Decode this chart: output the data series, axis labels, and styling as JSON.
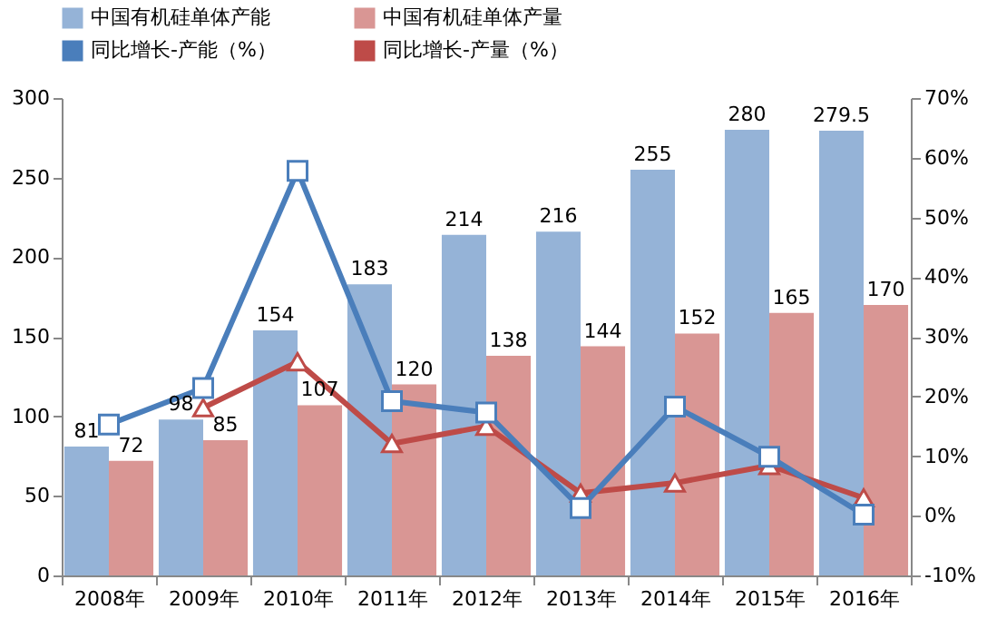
{
  "chart_data": {
    "type": "bar",
    "categories": [
      "2008年",
      "2009年",
      "2010年",
      "2011年",
      "2012年",
      "2013年",
      "2014年",
      "2015年",
      "2016年"
    ],
    "series": [
      {
        "name": "中国有机硅单体产能",
        "color": "#95b3d7",
        "values": [
          81,
          98,
          154,
          183,
          214,
          216,
          255,
          280,
          279.5
        ],
        "value_labels": [
          "81",
          "98",
          "154",
          "183",
          "214",
          "216",
          "255",
          "280",
          "279.5"
        ]
      },
      {
        "name": "中国有机硅单体产量",
        "color": "#d99694",
        "values": [
          72,
          85,
          107,
          120,
          138,
          144,
          152,
          165,
          170
        ],
        "value_labels": [
          "72",
          "85",
          "107",
          "120",
          "138",
          "144",
          "152",
          "165",
          "170"
        ]
      },
      {
        "name": "同比增长-产能（%）",
        "type": "line",
        "axis": "y2",
        "marker": "square",
        "color": "#4a7ebb",
        "values": [
          15.3,
          21.4,
          57.8,
          19.2,
          17.3,
          1.3,
          18.3,
          9.9,
          0.2
        ]
      },
      {
        "name": "同比增长-产量（%）",
        "type": "line",
        "axis": "y2",
        "marker": "triangle",
        "color": "#be4b48",
        "values": [
          null,
          18.1,
          25.8,
          12.1,
          15.0,
          3.8,
          5.5,
          8.4,
          3.0
        ]
      }
    ],
    "ylim": [
      0,
      300
    ],
    "yticks": [
      0,
      50,
      100,
      150,
      200,
      250,
      300
    ],
    "y2lim": [
      -10,
      70
    ],
    "y2ticks": [
      {
        "value": -10,
        "label": "-10%"
      },
      {
        "value": 0,
        "label": "0%"
      },
      {
        "value": 10,
        "label": "10%"
      },
      {
        "value": 20,
        "label": "20%"
      },
      {
        "value": 30,
        "label": "30%"
      },
      {
        "value": 40,
        "label": "40%"
      },
      {
        "value": 50,
        "label": "50%"
      },
      {
        "value": 60,
        "label": "60%"
      },
      {
        "value": 70,
        "label": "70%"
      }
    ],
    "legend": "top",
    "grid": false
  }
}
